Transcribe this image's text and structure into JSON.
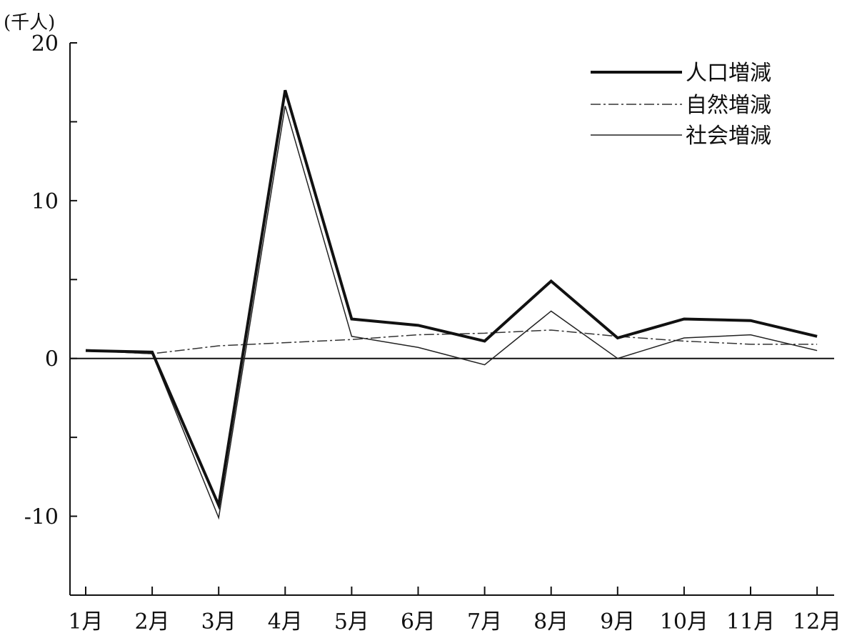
{
  "chart_data": {
    "type": "line",
    "unit_label": "(千人)",
    "categories": [
      "1月",
      "2月",
      "3月",
      "4月",
      "5月",
      "6月",
      "7月",
      "8月",
      "9月",
      "10月",
      "11月",
      "12月"
    ],
    "ylim": [
      -15,
      20
    ],
    "yticks": [
      -15,
      -10,
      -5,
      0,
      5,
      10,
      15,
      20
    ],
    "ytick_labels": [
      {
        "value": 20,
        "label": "20"
      },
      {
        "value": 10,
        "label": "10"
      },
      {
        "value": 0,
        "label": "0"
      },
      {
        "value": -10,
        "label": "-10"
      }
    ],
    "grid": false,
    "legend_position": "top-right",
    "series": [
      {
        "name": "人口増減",
        "style": "thick-solid",
        "color": "#111111",
        "values": [
          0.5,
          0.4,
          -9.3,
          17.0,
          2.5,
          2.1,
          1.1,
          4.9,
          1.3,
          2.5,
          2.4,
          1.4
        ]
      },
      {
        "name": "自然増減",
        "style": "dash-dot",
        "color": "#333333",
        "values": [
          0.5,
          0.3,
          0.8,
          1.0,
          1.2,
          1.5,
          1.6,
          1.8,
          1.4,
          1.1,
          0.9,
          0.9
        ]
      },
      {
        "name": "社会増減",
        "style": "thin-solid",
        "color": "#222222",
        "values": [
          0.5,
          0.3,
          -10.1,
          16.0,
          1.4,
          0.7,
          -0.4,
          3.0,
          0.0,
          1.3,
          1.5,
          0.5
        ]
      }
    ]
  }
}
